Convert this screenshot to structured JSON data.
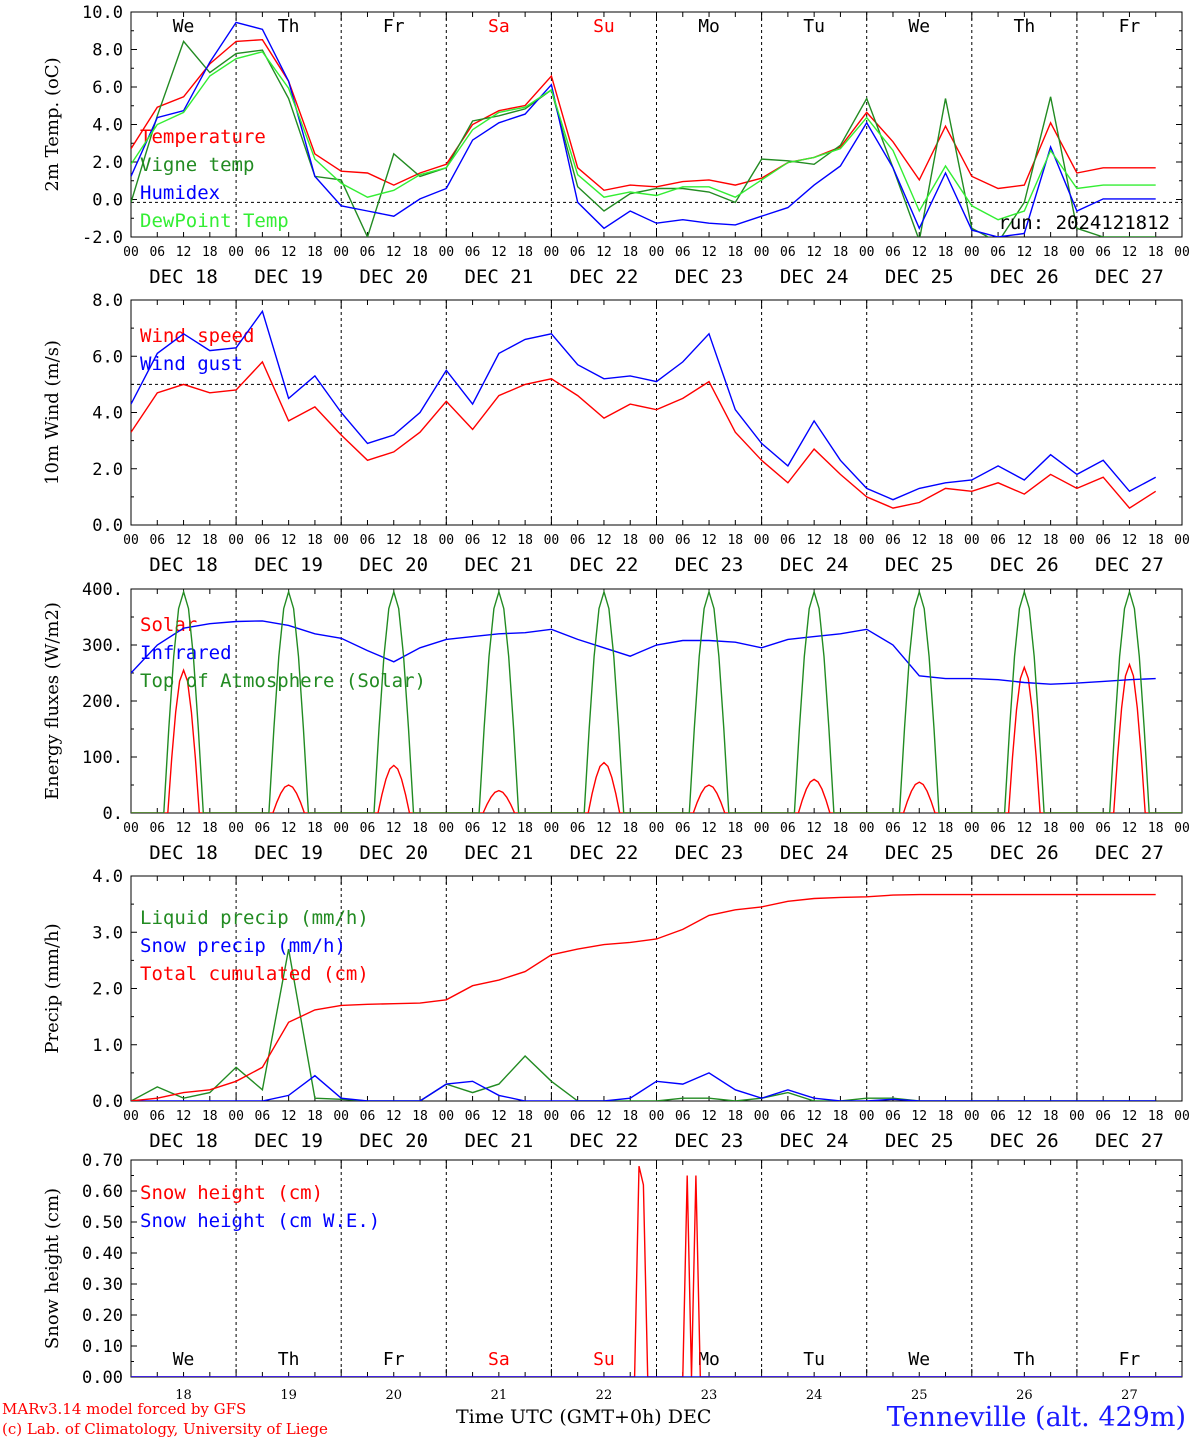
{
  "station": "Tenneville (alt. 429m)",
  "credit_line1": "MARv3.14 model forced by GFS",
  "credit_line2": "(c) Lab. of Climatology, University of Liege",
  "x_axis_title": "Time UTC (GMT+0h) DEC",
  "day_names": [
    "We",
    "Th",
    "Fr",
    "Sa",
    "Su",
    "Mo",
    "Tu",
    "We",
    "Th",
    "Fr"
  ],
  "day_name_colors": [
    "#000000",
    "#000000",
    "#000000",
    "#ff0000",
    "#ff0000",
    "#000000",
    "#000000",
    "#000000",
    "#000000",
    "#000000"
  ],
  "date_labels": [
    "DEC 18",
    "DEC 19",
    "DEC 20",
    "DEC 21",
    "DEC 22",
    "DEC 23",
    "DEC 24",
    "DEC 25",
    "DEC 26",
    "DEC 27"
  ],
  "hour_ticks": [
    "00",
    "06",
    "12",
    "18"
  ],
  "last_hour_tick": "00",
  "day_numbers": [
    "18",
    "19",
    "20",
    "21",
    "22",
    "23",
    "24",
    "25",
    "26",
    "27"
  ],
  "chart_data": [
    {
      "type": "line",
      "ylabel": "2m Temp. (oC)",
      "ylim": [
        -2,
        11
      ],
      "yticks": [
        "-2.0",
        "0.0",
        "2.0",
        "4.0",
        "6.0",
        "8.0",
        "10.0"
      ],
      "ref_line": 0,
      "annotation": "run: 2024121812",
      "x_unit": "hours since DEC 18 00 UTC",
      "series": [
        {
          "name": "Temperature",
          "color": "#ff0000",
          "x": [
            0,
            6,
            12,
            18,
            24,
            30,
            36,
            42,
            48,
            54,
            60,
            66,
            72,
            78,
            84,
            90,
            96,
            102,
            108,
            114,
            120,
            126,
            132,
            138,
            144,
            150,
            156,
            162,
            168,
            174,
            180,
            186,
            192,
            198,
            204,
            210,
            216,
            222,
            228,
            234
          ],
          "values": [
            3.1,
            5.5,
            6.1,
            8.0,
            9.3,
            9.4,
            7.0,
            2.8,
            1.8,
            1.7,
            1.0,
            1.7,
            2.2,
            4.5,
            5.3,
            5.6,
            7.3,
            2.0,
            0.7,
            1.0,
            0.9,
            1.2,
            1.3,
            1.0,
            1.4,
            2.3,
            2.6,
            3.2,
            5.2,
            3.5,
            1.3,
            4.4,
            1.5,
            0.8,
            1.0,
            4.6,
            1.7,
            2.0,
            2.0,
            2.0
          ]
        },
        {
          "name": "Vigne temp",
          "color": "#228b22",
          "x": [
            0,
            6,
            12,
            18,
            24,
            30,
            36,
            42,
            48,
            54,
            60,
            66,
            72,
            78,
            84,
            90,
            96,
            102,
            108,
            114,
            120,
            126,
            132,
            138,
            144,
            150,
            156,
            162,
            168,
            174,
            180,
            186,
            192,
            198,
            204,
            210,
            216,
            222,
            228,
            234
          ],
          "values": [
            0.0,
            5.0,
            9.3,
            7.5,
            8.6,
            8.8,
            6.0,
            1.5,
            1.3,
            -2.0,
            2.8,
            1.5,
            2.0,
            4.7,
            5.0,
            5.4,
            6.5,
            0.9,
            -0.5,
            0.5,
            0.8,
            0.8,
            0.6,
            0.0,
            2.5,
            2.4,
            2.2,
            3.3,
            6.0,
            2.0,
            -2.2,
            6.0,
            -1.5,
            -2.3,
            0.0,
            6.1,
            -1.5,
            -2.0,
            -2.0,
            -2.0
          ]
        },
        {
          "name": "Humidex",
          "color": "#0000ff",
          "x": [
            0,
            6,
            12,
            18,
            24,
            30,
            36,
            42,
            48,
            54,
            60,
            66,
            72,
            78,
            84,
            90,
            96,
            102,
            108,
            114,
            120,
            126,
            132,
            138,
            144,
            150,
            156,
            162,
            168,
            174,
            180,
            186,
            192,
            198,
            204,
            210,
            216,
            222,
            228,
            234
          ],
          "values": [
            1.5,
            4.9,
            5.3,
            8.1,
            10.4,
            10.0,
            7.0,
            1.5,
            -0.2,
            -0.5,
            -0.8,
            0.2,
            0.8,
            3.6,
            4.6,
            5.1,
            6.8,
            0.0,
            -1.5,
            -0.5,
            -1.2,
            -1.0,
            -1.2,
            -1.3,
            -0.8,
            -0.3,
            1.0,
            2.1,
            4.6,
            2.0,
            -1.5,
            1.7,
            -1.6,
            -2.0,
            -1.8,
            3.2,
            -0.5,
            0.2,
            0.2,
            0.2
          ]
        },
        {
          "name": "DewPoint Temp",
          "color": "#33ee33",
          "x": [
            0,
            6,
            12,
            18,
            24,
            30,
            36,
            42,
            48,
            54,
            60,
            66,
            72,
            78,
            84,
            90,
            96,
            102,
            108,
            114,
            120,
            126,
            132,
            138,
            144,
            150,
            156,
            162,
            168,
            174,
            180,
            186,
            192,
            198,
            204,
            210,
            216,
            222,
            228,
            234
          ],
          "values": [
            2.2,
            4.5,
            5.2,
            7.3,
            8.3,
            8.7,
            6.6,
            2.5,
            1.1,
            0.3,
            0.7,
            1.6,
            2.0,
            4.2,
            5.2,
            5.5,
            6.5,
            1.6,
            0.3,
            0.6,
            0.4,
            0.9,
            0.9,
            0.3,
            1.3,
            2.3,
            2.6,
            3.1,
            4.9,
            3.0,
            -0.5,
            2.1,
            -0.2,
            -1.0,
            -0.5,
            3.0,
            0.8,
            1.0,
            1.0,
            1.0
          ]
        }
      ]
    },
    {
      "type": "line",
      "ylabel": "10m Wind (m/s)",
      "ylim": [
        0,
        8
      ],
      "yticks": [
        "0.0",
        "2.0",
        "4.0",
        "6.0",
        "8.0"
      ],
      "ref_line": 5,
      "x_unit": "hours since DEC 18 00 UTC",
      "series": [
        {
          "name": "Wind speed",
          "color": "#ff0000",
          "x": [
            0,
            6,
            12,
            18,
            24,
            30,
            36,
            42,
            48,
            54,
            60,
            66,
            72,
            78,
            84,
            90,
            96,
            102,
            108,
            114,
            120,
            126,
            132,
            138,
            144,
            150,
            156,
            162,
            168,
            174,
            180,
            186,
            192,
            198,
            204,
            210,
            216,
            222,
            228,
            234
          ],
          "values": [
            3.3,
            4.7,
            5.0,
            4.7,
            4.8,
            5.8,
            3.7,
            4.2,
            3.2,
            2.3,
            2.6,
            3.3,
            4.4,
            3.4,
            4.6,
            5.0,
            5.2,
            4.6,
            3.8,
            4.3,
            4.1,
            4.5,
            5.1,
            3.3,
            2.3,
            1.5,
            2.7,
            1.8,
            1.0,
            0.6,
            0.8,
            1.3,
            1.2,
            1.5,
            1.1,
            1.8,
            1.3,
            1.7,
            0.6,
            1.2
          ]
        },
        {
          "name": "Wind gust",
          "color": "#0000ff",
          "x": [
            0,
            6,
            12,
            18,
            24,
            30,
            36,
            42,
            48,
            54,
            60,
            66,
            72,
            78,
            84,
            90,
            96,
            102,
            108,
            114,
            120,
            126,
            132,
            138,
            144,
            150,
            156,
            162,
            168,
            174,
            180,
            186,
            192,
            198,
            204,
            210,
            216,
            222,
            228,
            234
          ],
          "values": [
            4.3,
            6.1,
            6.8,
            6.2,
            6.3,
            7.6,
            4.5,
            5.3,
            4.0,
            2.9,
            3.2,
            4.0,
            5.5,
            4.3,
            6.1,
            6.6,
            6.8,
            5.7,
            5.2,
            5.3,
            5.1,
            5.8,
            6.8,
            4.1,
            2.9,
            2.1,
            3.7,
            2.3,
            1.3,
            0.9,
            1.3,
            1.5,
            1.6,
            2.1,
            1.6,
            2.5,
            1.8,
            2.3,
            1.2,
            1.7
          ]
        }
      ]
    },
    {
      "type": "line",
      "ylabel": "Energy fluxes (W/m2)",
      "ylim": [
        0,
        400
      ],
      "yticks": [
        "0.",
        "100.",
        "200.",
        "300.",
        "400."
      ],
      "x_unit": "hours since DEC 18 00 UTC",
      "day_peak_hour": 12,
      "top_of_atmosphere_peak": 395,
      "solar_daily_peak": [
        255,
        50,
        85,
        40,
        90,
        50,
        60,
        55,
        260,
        265
      ],
      "series": [
        {
          "name": "Solar",
          "color": "#ff0000"
        },
        {
          "name": "Infrared",
          "color": "#0000ff",
          "x": [
            0,
            6,
            12,
            18,
            24,
            30,
            36,
            42,
            48,
            54,
            60,
            66,
            72,
            78,
            84,
            90,
            96,
            102,
            108,
            114,
            120,
            126,
            132,
            138,
            144,
            150,
            156,
            162,
            168,
            174,
            180,
            186,
            192,
            198,
            204,
            210,
            216,
            222,
            228,
            234
          ],
          "values": [
            250,
            300,
            330,
            338,
            342,
            343,
            335,
            320,
            312,
            290,
            270,
            295,
            310,
            315,
            320,
            322,
            328,
            310,
            295,
            280,
            300,
            308,
            308,
            305,
            295,
            310,
            315,
            320,
            328,
            300,
            245,
            240,
            240,
            238,
            233,
            230,
            232,
            235,
            238,
            240
          ]
        },
        {
          "name": "Top of Atmosphere (Solar)",
          "color": "#228b22"
        }
      ]
    },
    {
      "type": "line",
      "ylabel": "Precip (mm/h)",
      "ylim": [
        0,
        4
      ],
      "yticks": [
        "0.0",
        "1.0",
        "2.0",
        "3.0",
        "4.0"
      ],
      "x_unit": "hours since DEC 18 00 UTC",
      "series": [
        {
          "name": "Liquid precip (mm/h)",
          "color": "#228b22",
          "x": [
            0,
            6,
            12,
            18,
            24,
            30,
            36,
            42,
            48,
            54,
            60,
            66,
            72,
            78,
            84,
            90,
            96,
            102,
            108,
            114,
            120,
            126,
            132,
            138,
            144,
            150,
            156,
            162,
            168,
            174,
            180,
            186,
            192,
            198,
            204,
            210,
            216,
            222,
            228,
            234
          ],
          "values": [
            0,
            0.25,
            0.05,
            0.15,
            0.6,
            0.2,
            2.7,
            0.05,
            0.03,
            0,
            0,
            0,
            0.3,
            0.15,
            0.3,
            0.8,
            0.35,
            0,
            0,
            0,
            0,
            0.05,
            0.05,
            0,
            0.05,
            0.15,
            0,
            0,
            0.05,
            0.05,
            0,
            0,
            0,
            0,
            0,
            0,
            0,
            0,
            0,
            0
          ]
        },
        {
          "name": "Snow precip (mm/h)",
          "color": "#0000ff",
          "x": [
            0,
            6,
            12,
            18,
            24,
            30,
            36,
            42,
            48,
            54,
            60,
            66,
            72,
            78,
            84,
            90,
            96,
            102,
            108,
            114,
            120,
            126,
            132,
            138,
            144,
            150,
            156,
            162,
            168,
            174,
            180,
            186,
            192,
            198,
            204,
            210,
            216,
            222,
            228,
            234
          ],
          "values": [
            0,
            0,
            0,
            0,
            0,
            0,
            0.1,
            0.45,
            0.05,
            0,
            0,
            0,
            0.3,
            0.35,
            0.1,
            0,
            0,
            0,
            0,
            0.05,
            0.35,
            0.3,
            0.5,
            0.2,
            0.05,
            0.2,
            0.05,
            0,
            0,
            0.03,
            0,
            0,
            0,
            0,
            0,
            0,
            0,
            0,
            0,
            0
          ]
        },
        {
          "name": "Total cumulated (cm)",
          "color": "#ff0000",
          "x": [
            0,
            6,
            12,
            18,
            24,
            30,
            36,
            42,
            48,
            54,
            60,
            66,
            72,
            78,
            84,
            90,
            96,
            102,
            108,
            114,
            120,
            126,
            132,
            138,
            144,
            150,
            156,
            162,
            168,
            174,
            180,
            186,
            192,
            198,
            204,
            210,
            216,
            222,
            228,
            234
          ],
          "values": [
            0,
            0.05,
            0.15,
            0.2,
            0.35,
            0.6,
            1.4,
            1.62,
            1.7,
            1.72,
            1.73,
            1.74,
            1.8,
            2.05,
            2.15,
            2.3,
            2.6,
            2.7,
            2.78,
            2.82,
            2.88,
            3.05,
            3.3,
            3.4,
            3.45,
            3.55,
            3.6,
            3.62,
            3.63,
            3.66,
            3.67,
            3.67,
            3.67,
            3.67,
            3.67,
            3.67,
            3.67,
            3.67,
            3.67,
            3.67
          ]
        }
      ]
    },
    {
      "type": "line",
      "ylabel": "Snow height (cm)",
      "ylim": [
        0,
        0.7
      ],
      "yticks": [
        "0.00",
        "0.10",
        "0.20",
        "0.30",
        "0.40",
        "0.50",
        "0.60",
        "0.70"
      ],
      "x_unit": "hours since DEC 18 00 UTC",
      "series": [
        {
          "name": "Snow height (cm)",
          "color": "#ff0000",
          "x": [
            0,
            115,
            116,
            117,
            118,
            119,
            120,
            126,
            127,
            128,
            129,
            130,
            131,
            240
          ],
          "values": [
            0,
            0,
            0.68,
            0.62,
            0,
            0,
            0,
            0,
            0.65,
            0,
            0.65,
            0,
            0,
            0
          ]
        },
        {
          "name": "Snow height (cm W.E.)",
          "color": "#0000ff",
          "x": [
            0,
            240
          ],
          "values": [
            0,
            0
          ]
        }
      ]
    }
  ]
}
